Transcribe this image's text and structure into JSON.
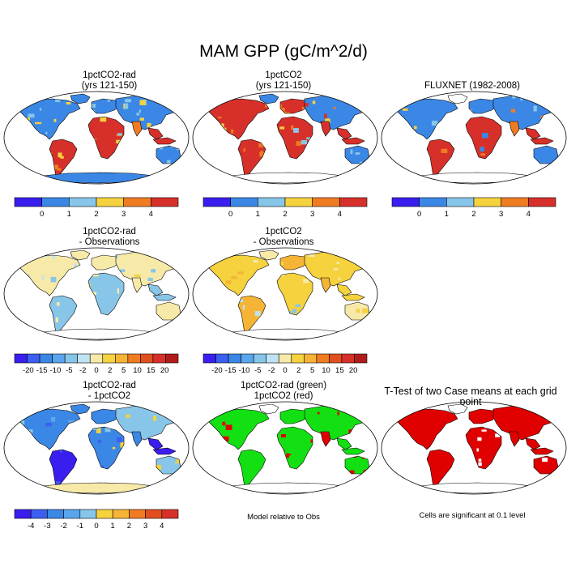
{
  "title": "MAM GPP (gC/m^2/d)",
  "colors": {
    "gpp": [
      "#3a1ef0",
      "#3b87e6",
      "#87c6e8",
      "#f5d23e",
      "#f07c21",
      "#d7302a"
    ],
    "diff": [
      "#3a1ef0",
      "#3b5ff0",
      "#3b87e6",
      "#5aa6ee",
      "#87c6e8",
      "#bfe3f2",
      "#f7e9a8",
      "#f5d23e",
      "#f5b435",
      "#f07c21",
      "#e24f1f",
      "#d7302a",
      "#b21b1b"
    ],
    "rad": [
      "#3a1ef0",
      "#3b5ff0",
      "#3b87e6",
      "#5aa6ee",
      "#87c6e8",
      "#f5d23e",
      "#f5b435",
      "#f07c21",
      "#e24f1f",
      "#d7302a"
    ],
    "green": "#12e012",
    "red": "#e00000",
    "coast": "#000000"
  },
  "panels": {
    "p1": {
      "title": "1pctCO2-rad\n(yrs 121-150)",
      "fill": "mixed_gpp"
    },
    "p2": {
      "title": "1pctCO2\n(yrs 121-150)",
      "fill": "mixed_gpp_hi"
    },
    "p3": {
      "title": "FLUXNET (1982-2008)",
      "fill": "mixed_gpp_obs"
    },
    "p4": {
      "title": "1pctCO2-rad\n- Observations",
      "fill": "diff_a"
    },
    "p5": {
      "title": "1pctCO2\n- Observations",
      "fill": "diff_b"
    },
    "p6": {
      "title": "1pctCO2-rad\n- 1pctCO2",
      "fill": "rad_diff"
    },
    "p7": {
      "title": "1pctCO2-rad (green)\n1pctCO2 (red)",
      "fill": "green_red"
    },
    "p8": {
      "title": "T-Test of two Case means at each grid point",
      "fill": "ttest"
    }
  },
  "colorbars": {
    "cb1": {
      "labels": [
        "0",
        "1",
        "2",
        "3",
        "4"
      ],
      "palette": "gpp"
    },
    "cb2": {
      "labels": [
        "0",
        "1",
        "2",
        "3",
        "4"
      ],
      "palette": "gpp"
    },
    "cb3": {
      "labels": [
        "0",
        "1",
        "2",
        "3",
        "4"
      ],
      "palette": "gpp"
    },
    "cb4": {
      "labels": [
        "-20",
        "-15",
        "-10",
        "-5",
        "-2",
        "0",
        "2",
        "5",
        "10",
        "15",
        "20"
      ],
      "palette": "diff"
    },
    "cb5": {
      "labels": [
        "-20",
        "-15",
        "-10",
        "-5",
        "-2",
        "0",
        "2",
        "5",
        "10",
        "15",
        "20"
      ],
      "palette": "diff"
    },
    "cb6": {
      "labels": [
        "-4",
        "-3",
        "-2",
        "-1",
        "0",
        "1",
        "2",
        "3",
        "4"
      ],
      "palette": "rad"
    }
  },
  "captions": {
    "model_relative": "Model relative to Obs",
    "significant": "Cells are significant at 0.1 level"
  }
}
